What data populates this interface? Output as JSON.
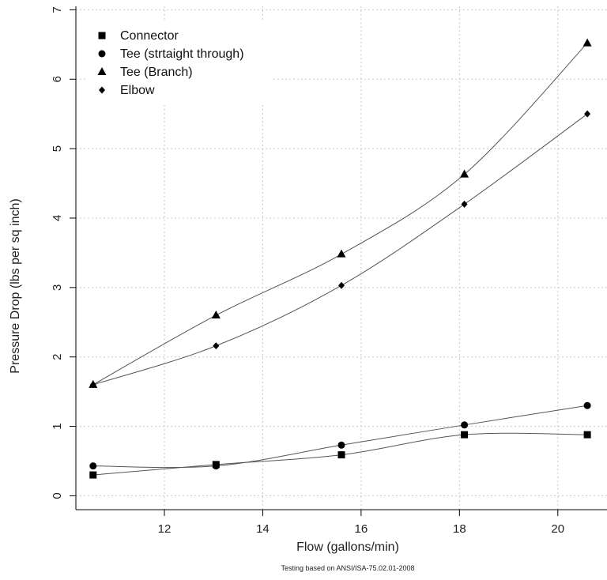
{
  "chart_data": {
    "type": "line",
    "xlabel": "Flow (gallons/min)",
    "ylabel": "Pressure Drop (lbs per sq inch)",
    "caption": "Testing based on ANSI/ISA-75.02.01-2008",
    "xlim": [
      10.2,
      21.0
    ],
    "ylim": [
      -0.2,
      7.05
    ],
    "x_ticks": [
      12,
      14,
      16,
      18,
      20
    ],
    "y_ticks": [
      0,
      1,
      2,
      3,
      4,
      5,
      6,
      7
    ],
    "grid": true,
    "legend_position": "top-left",
    "x": [
      10.55,
      13.05,
      15.6,
      18.1,
      20.6
    ],
    "series": [
      {
        "name": "Connector",
        "marker": "square",
        "values": [
          0.3,
          0.45,
          0.59,
          0.88,
          0.88
        ]
      },
      {
        "name": "Tee (strtaight through)",
        "marker": "circle",
        "values": [
          0.43,
          0.43,
          0.73,
          1.02,
          1.3
        ]
      },
      {
        "name": "Tee (Branch)",
        "marker": "triangle",
        "values": [
          1.6,
          2.6,
          3.48,
          4.63,
          6.52
        ]
      },
      {
        "name": "Elbow",
        "marker": "diamond",
        "values": [
          1.6,
          2.16,
          3.03,
          4.2,
          5.5
        ]
      }
    ]
  }
}
